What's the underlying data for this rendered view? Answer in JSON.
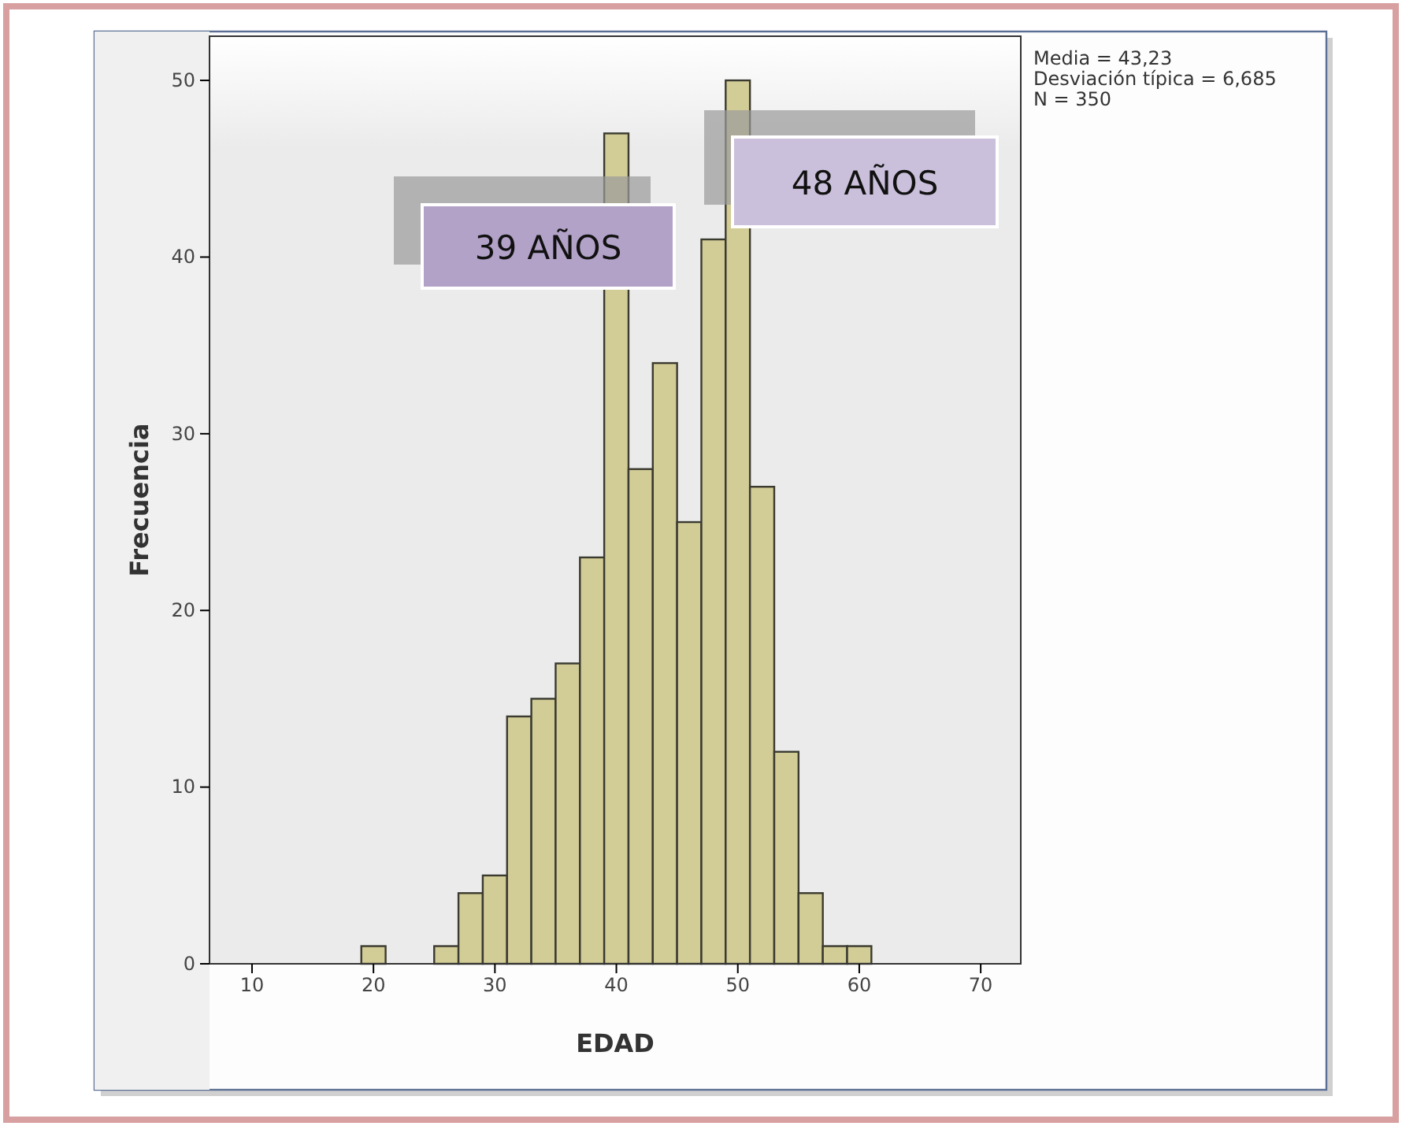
{
  "chart_data": {
    "type": "histogram",
    "xlabel": "EDAD",
    "ylabel": "Frecuencia",
    "bins": [
      19,
      21,
      23,
      25,
      27,
      29,
      31,
      33,
      35,
      37,
      39,
      41,
      43,
      45,
      47,
      49,
      51,
      53,
      55,
      57,
      59,
      61
    ],
    "values": [
      1,
      0,
      0,
      1,
      4,
      5,
      14,
      15,
      17,
      23,
      47,
      28,
      34,
      25,
      41,
      50,
      27,
      12,
      4,
      1,
      1
    ],
    "color": "#d2cc96",
    "xlim": [
      6.5,
      73.3
    ],
    "xticks": [
      10,
      20,
      30,
      40,
      50,
      60,
      70
    ],
    "ylim": [
      0,
      52.5
    ],
    "yticks": [
      0,
      10,
      20,
      30,
      40,
      50
    ],
    "grid": false,
    "annotations": [
      "39 AÑOS",
      "48 AÑOS",
      "Media = 43,23",
      "Desviación típica = 6,685",
      "N = 350"
    ]
  }
}
